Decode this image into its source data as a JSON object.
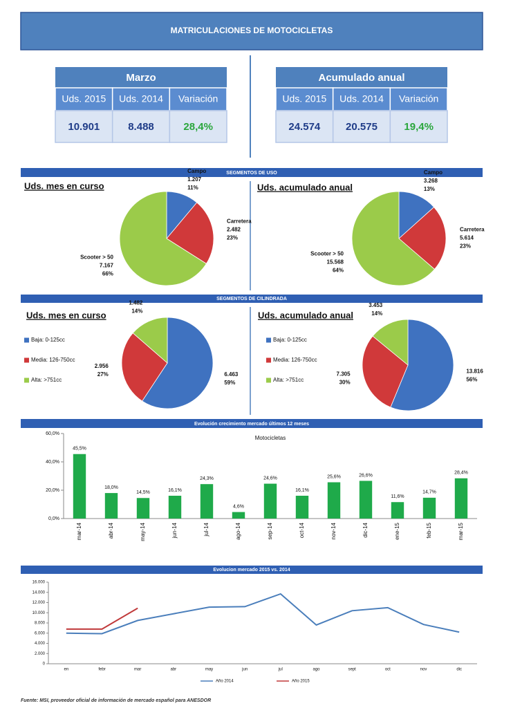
{
  "header": {
    "title": "MATRICULACIONES DE MOTOCICLETAS"
  },
  "tables": [
    {
      "title": "Marzo",
      "columns": [
        "Uds. 2015",
        "Uds. 2014",
        "Variación"
      ],
      "row": [
        "10.901",
        "8.488",
        "28,4%"
      ]
    },
    {
      "title": "Acumulado anual",
      "columns": [
        "Uds. 2015",
        "Uds. 2014",
        "Variación"
      ],
      "row": [
        "24.574",
        "20.575",
        "19,4%"
      ]
    }
  ],
  "sections": [
    "SEGMENTOS DE USO",
    "SEGMENTOS DE CILINDRADA",
    "Evolución crecimiento mercado últimos 12 meses",
    "Evolucion mercado 2015 vs. 2014"
  ],
  "chart_data": [
    {
      "type": "pie",
      "title": "Uds. mes en curso",
      "categories": [
        "Campo",
        "Carretera",
        "Scooter > 50"
      ],
      "values": [
        1207,
        2482,
        7167
      ],
      "value_labels": [
        "1.207",
        "2.482",
        "7.167"
      ],
      "percents": [
        11,
        23,
        66
      ],
      "percent_labels": [
        "11%",
        "23%",
        "66%"
      ],
      "colors": [
        "#3f72c0",
        "#d0393a",
        "#9bcb4a"
      ]
    },
    {
      "type": "pie",
      "title": "Uds. acumulado anual",
      "categories": [
        "Campo",
        "Carretera",
        "Scooter > 50"
      ],
      "values": [
        3268,
        5614,
        15568
      ],
      "value_labels": [
        "3.268",
        "5.614",
        "15.568"
      ],
      "percents": [
        13,
        23,
        64
      ],
      "percent_labels": [
        "13%",
        "23%",
        "64%"
      ],
      "colors": [
        "#3f72c0",
        "#d0393a",
        "#9bcb4a"
      ]
    },
    {
      "type": "pie",
      "title": "Uds. mes en curso",
      "categories": [
        "Baja: 0-125cc",
        "Media: 126-750cc",
        "Alta: >751cc"
      ],
      "values": [
        6463,
        2956,
        1482
      ],
      "value_labels": [
        "6.463",
        "2.956",
        "1.482"
      ],
      "percents": [
        59,
        27,
        14
      ],
      "percent_labels": [
        "59%",
        "27%",
        "14%"
      ],
      "colors": [
        "#3f72c0",
        "#d0393a",
        "#9bcb4a"
      ],
      "legend": "left"
    },
    {
      "type": "pie",
      "title": "Uds. acumulado anual",
      "categories": [
        "Baja: 0-125cc",
        "Media: 126-750cc",
        "Alta: >751cc"
      ],
      "values": [
        13816,
        7305,
        3453
      ],
      "value_labels": [
        "13.816",
        "7.305",
        "3.453"
      ],
      "percents": [
        56,
        30,
        14
      ],
      "percent_labels": [
        "56%",
        "30%",
        "14%"
      ],
      "colors": [
        "#3f72c0",
        "#d0393a",
        "#9bcb4a"
      ],
      "legend": "left"
    },
    {
      "type": "bar",
      "title": "Motocicletas",
      "categories": [
        "mar-14",
        "abr-14",
        "may-14",
        "jun-14",
        "jul-14",
        "ago-14",
        "sep-14",
        "oct-14",
        "nov-14",
        "dic-14",
        "ene-15",
        "feb-15",
        "mar-15"
      ],
      "values": [
        45.5,
        18.0,
        14.5,
        16.1,
        24.3,
        4.6,
        24.6,
        16.1,
        25.6,
        26.6,
        11.6,
        14.7,
        28.4
      ],
      "value_labels": [
        "45,5%",
        "18,0%",
        "14,5%",
        "16,1%",
        "24,3%",
        "4,6%",
        "24,6%",
        "16,1%",
        "25,6%",
        "26,6%",
        "11,6%",
        "14,7%",
        "28,4%"
      ],
      "color": "#1faa4a",
      "ylim": [
        0,
        60
      ],
      "yticks": [
        {
          "value": 0,
          "label": "0,0%"
        },
        {
          "value": 20,
          "label": "20,0%"
        },
        {
          "value": 40,
          "label": "40,0%"
        },
        {
          "value": 60,
          "label": "60,0%"
        }
      ]
    },
    {
      "type": "line",
      "categories": [
        "en",
        "febr",
        "mar",
        "abr",
        "may",
        "jun",
        "jul",
        "ago",
        "sept",
        "oct",
        "nov",
        "dic"
      ],
      "series": [
        {
          "name": "Año 2014",
          "color": "#4a7ebb",
          "values": [
            6000,
            5900,
            8488,
            9800,
            11100,
            11200,
            13700,
            7600,
            10400,
            11000,
            7700,
            6200
          ]
        },
        {
          "name": "Año 2015",
          "color": "#c0393a",
          "values": [
            6800,
            6800,
            10901,
            null,
            null,
            null,
            null,
            null,
            null,
            null,
            null,
            null
          ]
        }
      ],
      "ylim": [
        0,
        16000
      ],
      "yticks": [
        0,
        {
          "value": 2000,
          "label": "2.000"
        },
        {
          "value": 4000,
          "label": "4.000"
        },
        {
          "value": 6000,
          "label": "6.000"
        },
        {
          "value": 8000,
          "label": "8.000"
        },
        {
          "value": 10000,
          "label": "10.000"
        },
        {
          "value": 12000,
          "label": "12.000"
        },
        {
          "value": 14000,
          "label": "14.000"
        },
        {
          "value": 16000,
          "label": "16.000"
        }
      ],
      "legend": "bottom"
    }
  ],
  "footer": "Fuente: MSI, proveedor oficial de información de mercado español para ANESDOR"
}
